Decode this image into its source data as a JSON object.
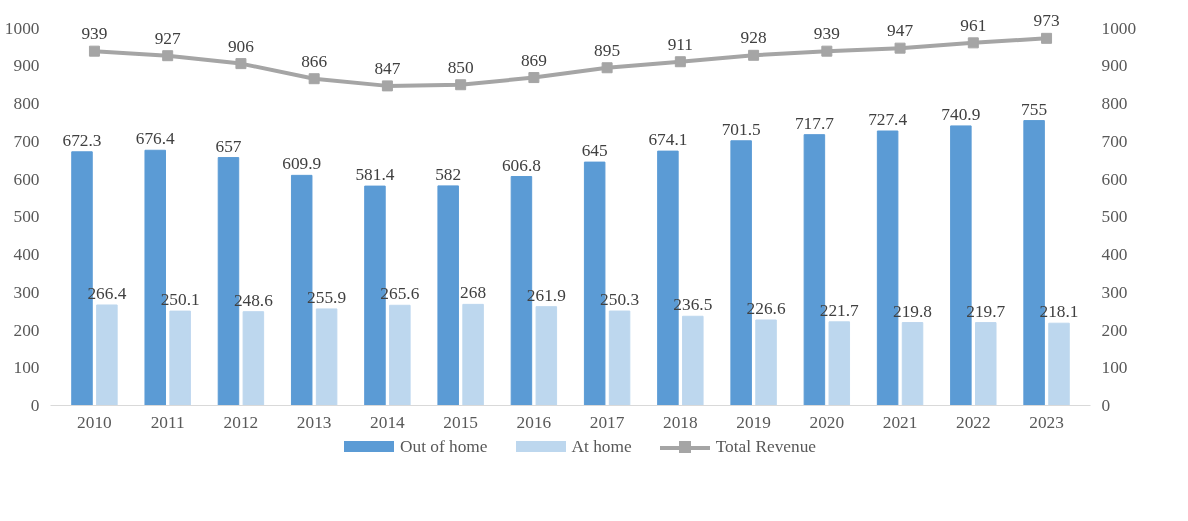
{
  "chart_data": {
    "type": "bar",
    "categories": [
      "2010",
      "2011",
      "2012",
      "2013",
      "2014",
      "2015",
      "2016",
      "2017",
      "2018",
      "2019",
      "2020",
      "2021",
      "2022",
      "2023"
    ],
    "series": [
      {
        "name": "Out of home",
        "color": "#5b9bd5",
        "values": [
          672.3,
          676.4,
          657,
          609.9,
          581.4,
          582,
          606.8,
          645,
          674.1,
          701.5,
          717.7,
          727.4,
          740.9,
          755
        ]
      },
      {
        "name": "At home",
        "color": "#bdd7ee",
        "values": [
          266.4,
          250.1,
          248.6,
          255.9,
          265.6,
          268,
          261.9,
          250.3,
          236.5,
          226.6,
          221.7,
          219.8,
          219.7,
          218.1
        ]
      },
      {
        "name": "Total Revenue",
        "type": "line",
        "marker": "square",
        "color": "#a5a5a5",
        "values": [
          939,
          927,
          906,
          866,
          847,
          850,
          869,
          895,
          911,
          928,
          939,
          947,
          961,
          973
        ]
      }
    ],
    "ylim": [
      0,
      1000
    ],
    "yticks": [
      0,
      100,
      200,
      300,
      400,
      500,
      600,
      700,
      800,
      900,
      1000
    ],
    "y2lim": [
      0,
      1000
    ],
    "y2ticks": [
      0,
      100,
      200,
      300,
      400,
      500,
      600,
      700,
      800,
      900,
      1000
    ],
    "data_labels": true,
    "grid": false,
    "legend": "bottom"
  }
}
